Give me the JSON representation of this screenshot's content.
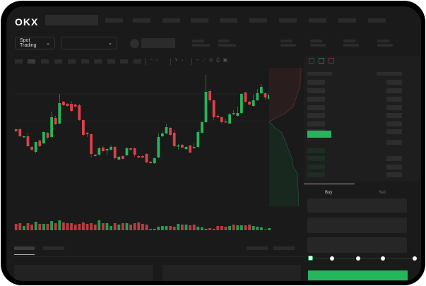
{
  "header": {
    "logo": "OKX"
  },
  "market_selector": {
    "label": "Spot Trading",
    "chevron": "chevron-down-icon"
  },
  "pair_selector": {
    "value": "",
    "chevron": "chevron-down-icon"
  },
  "trade_panel": {
    "tabs": [
      "Buy",
      "Sell"
    ],
    "active_tab": "Buy",
    "slider_percent": 0,
    "slider_stops": 5
  },
  "colors": {
    "up": "#25b65c",
    "down": "#d9424a",
    "background": "#1a1a1a",
    "button": "#25b65c"
  },
  "chart": {
    "candles": [
      [
        68,
        65,
        69,
        64
      ],
      [
        68,
        58,
        69,
        57
      ],
      [
        57,
        58,
        59,
        56
      ],
      [
        58,
        44,
        63,
        43
      ],
      [
        43,
        39,
        44,
        37
      ],
      [
        36,
        50,
        50,
        34
      ],
      [
        52,
        44,
        53,
        43
      ],
      [
        48,
        64,
        65,
        47
      ],
      [
        63,
        56,
        64,
        54
      ],
      [
        57,
        85,
        93,
        56
      ],
      [
        84,
        75,
        87,
        74
      ],
      [
        76,
        105,
        118,
        75
      ],
      [
        107,
        102,
        108,
        101
      ],
      [
        104,
        101,
        105,
        100
      ],
      [
        104,
        94,
        108,
        92
      ],
      [
        103,
        100,
        104,
        99
      ],
      [
        102,
        81,
        104,
        80
      ],
      [
        81,
        60,
        82,
        59
      ],
      [
        63,
        61,
        64,
        57
      ],
      [
        61,
        33,
        62,
        28
      ],
      [
        32,
        30,
        33,
        29
      ],
      [
        32,
        41,
        43,
        31
      ],
      [
        42,
        37,
        44,
        35
      ],
      [
        38,
        40,
        40,
        31
      ],
      [
        39,
        43,
        45,
        38
      ],
      [
        43,
        27,
        44,
        25
      ],
      [
        25,
        29,
        30,
        24
      ],
      [
        30,
        26,
        31,
        25
      ],
      [
        31,
        41,
        43,
        30
      ],
      [
        41,
        39,
        42,
        38
      ],
      [
        41,
        32,
        42,
        29
      ],
      [
        30,
        28,
        31,
        27
      ],
      [
        30,
        28,
        31,
        27
      ],
      [
        33,
        21,
        34,
        20
      ],
      [
        22,
        20,
        23,
        19
      ],
      [
        20,
        27,
        28,
        19
      ],
      [
        28,
        57,
        62,
        27
      ],
      [
        58,
        62,
        65,
        57
      ],
      [
        62,
        71,
        76,
        61
      ],
      [
        70,
        60,
        71,
        59
      ],
      [
        63,
        44,
        67,
        42
      ],
      [
        44,
        45,
        47,
        39
      ],
      [
        46,
        42,
        47,
        41
      ],
      [
        40,
        43,
        44,
        39
      ],
      [
        45,
        35,
        46,
        34
      ],
      [
        43,
        41,
        48,
        40
      ],
      [
        43,
        64,
        67,
        41
      ],
      [
        63,
        78,
        80,
        62
      ],
      [
        78,
        121,
        145,
        77
      ],
      [
        122,
        109,
        125,
        106
      ],
      [
        109,
        85,
        110,
        81
      ],
      [
        87,
        85,
        89,
        83
      ],
      [
        85,
        78,
        86,
        76
      ],
      [
        79,
        78,
        83,
        77
      ],
      [
        76,
        89,
        91,
        75
      ],
      [
        91,
        89,
        95,
        88
      ],
      [
        87,
        91,
        100,
        86
      ],
      [
        91,
        118,
        119,
        90
      ],
      [
        120,
        107,
        121,
        106
      ],
      [
        107,
        103,
        108,
        102
      ],
      [
        101,
        109,
        117,
        100
      ],
      [
        109,
        119,
        125,
        108
      ],
      [
        119,
        128,
        132,
        118
      ],
      [
        119,
        113,
        120,
        110
      ],
      [
        111,
        117,
        123,
        110
      ]
    ],
    "volumes": [
      9,
      10,
      6,
      10,
      8,
      12,
      9,
      9,
      9,
      13,
      10,
      14,
      11,
      10,
      10,
      8,
      9,
      11,
      9,
      10,
      8,
      14,
      10,
      10,
      6,
      10,
      8,
      10,
      10,
      8,
      10,
      11,
      9,
      8,
      2,
      2,
      5,
      6,
      6,
      6,
      5,
      9,
      8,
      8,
      7,
      8,
      5,
      4,
      2,
      3,
      2,
      6,
      6,
      5,
      6,
      8,
      7,
      7,
      7,
      8,
      6,
      5,
      4,
      1,
      3
    ]
  }
}
